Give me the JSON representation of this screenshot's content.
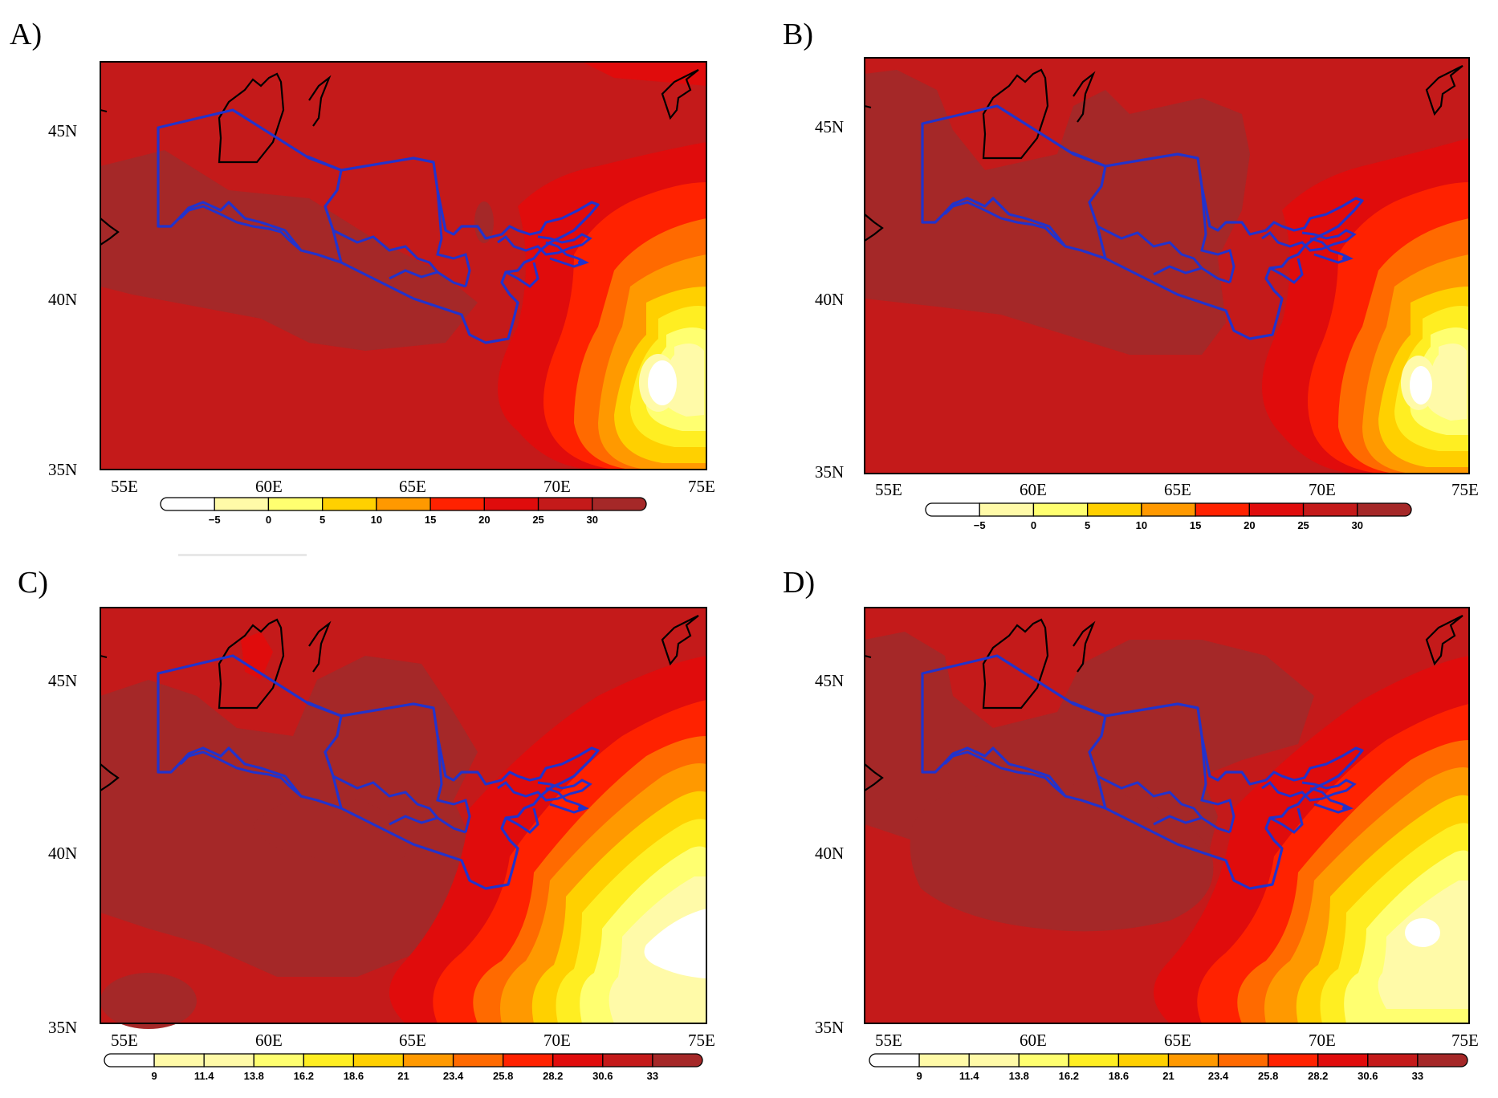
{
  "figure": {
    "colors": {
      "c_white": "#ffffff",
      "c_paleyellow": "#fffaa8",
      "c_lightyellow": "#ffff70",
      "c_yellow": "#ffee22",
      "c_gold": "#ffd000",
      "c_orange": "#ff9900",
      "c_darkorange": "#ff6a00",
      "c_red": "#ff2200",
      "c_crimson": "#e00c0c",
      "c_darkred": "#c41a1a",
      "c_brown": "#a52828",
      "border_blue": "#2233cc",
      "border_black": "#000000"
    },
    "panels": [
      {
        "label": "A)",
        "xticks": [
          "55E",
          "60E",
          "65E",
          "70E",
          "75E"
        ],
        "yticks": [
          "45N",
          "40N",
          "35N"
        ],
        "colorbar_labels": [
          "−5",
          "0",
          "5",
          "10",
          "15",
          "20",
          "25",
          "30"
        ]
      },
      {
        "label": "B)",
        "xticks": [
          "55E",
          "60E",
          "65E",
          "70E",
          "75E"
        ],
        "yticks": [
          "45N",
          "40N",
          "35N"
        ],
        "colorbar_labels": [
          "−5",
          "0",
          "5",
          "10",
          "15",
          "20",
          "25",
          "30"
        ]
      },
      {
        "label": "C)",
        "xticks": [
          "55E",
          "60E",
          "65E",
          "70E",
          "75E"
        ],
        "yticks": [
          "45N",
          "40N",
          "35N"
        ],
        "colorbar_labels": [
          "9",
          "11.4",
          "13.8",
          "16.2",
          "18.6",
          "21",
          "23.4",
          "25.8",
          "28.2",
          "30.6",
          "33"
        ]
      },
      {
        "label": "D)",
        "xticks": [
          "55E",
          "60E",
          "65E",
          "70E",
          "75E"
        ],
        "yticks": [
          "45N",
          "40N",
          "35N"
        ],
        "colorbar_labels": [
          "9",
          "11.4",
          "13.8",
          "16.2",
          "18.6",
          "21",
          "23.4",
          "25.8",
          "28.2",
          "30.6",
          "33"
        ]
      }
    ]
  }
}
